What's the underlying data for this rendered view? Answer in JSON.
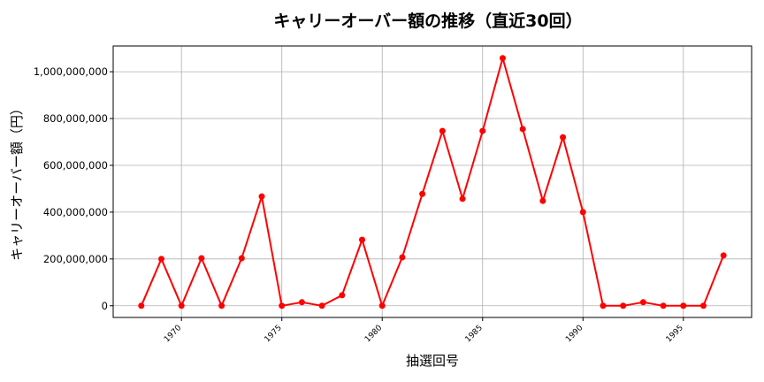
{
  "chart_data": {
    "type": "line",
    "title": "キャリーオーバー額の推移（直近30回）",
    "xlabel": "抽選回号",
    "ylabel": "キャリーオーバー額（円）",
    "xlim": [
      1966.6,
      1998.4
    ],
    "ylim": [
      -50000000,
      1110000000
    ],
    "grid": true,
    "x_ticks": [
      1970,
      1975,
      1980,
      1985,
      1990,
      1995
    ],
    "y_ticks": [
      0,
      200000000,
      400000000,
      600000000,
      800000000,
      1000000000
    ],
    "y_tick_labels": [
      "0",
      "200,000,000",
      "400,000,000",
      "600,000,000",
      "800,000,000",
      "1,000,000,000"
    ],
    "series": [
      {
        "color": "#ff0000",
        "x": [
          1968,
          1969,
          1970,
          1971,
          1972,
          1973,
          1974,
          1975,
          1976,
          1977,
          1978,
          1979,
          1980,
          1981,
          1982,
          1983,
          1984,
          1985,
          1986,
          1987,
          1988,
          1989,
          1990,
          1991,
          1992,
          1993,
          1994,
          1995,
          1996,
          1997
        ],
        "values": [
          0,
          200000000,
          0,
          203000000,
          0,
          203000000,
          467000000,
          0,
          15000000,
          0,
          45000000,
          282000000,
          0,
          207000000,
          478000000,
          747000000,
          457000000,
          747000000,
          1058000000,
          755000000,
          448000000,
          720000000,
          400000000,
          0,
          0,
          15000000,
          0,
          0,
          0,
          215000000
        ]
      }
    ]
  }
}
